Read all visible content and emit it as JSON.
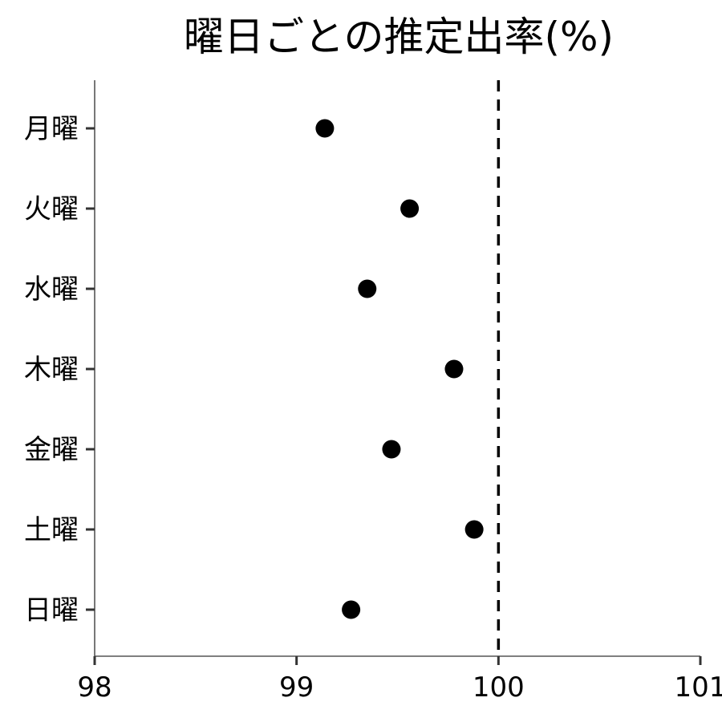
{
  "chart_data": {
    "type": "scatter",
    "title": "曜日ごとの推定出率(%)",
    "xlabel": "",
    "ylabel": "",
    "categories": [
      "月曜",
      "火曜",
      "水曜",
      "木曜",
      "金曜",
      "土曜",
      "日曜"
    ],
    "series": [
      {
        "values": [
          99.14,
          99.56,
          99.35,
          99.78,
          99.47,
          99.88,
          99.27
        ]
      }
    ],
    "xlim": [
      98,
      101
    ],
    "xticks": [
      98,
      99,
      100,
      101
    ],
    "xtick_labels": [
      "98",
      "99",
      "100",
      "101"
    ],
    "reference_line": {
      "x": 100,
      "style": "dashed",
      "color": "#000000"
    },
    "marker_color": "#000000",
    "grid": false,
    "legend": "none"
  }
}
